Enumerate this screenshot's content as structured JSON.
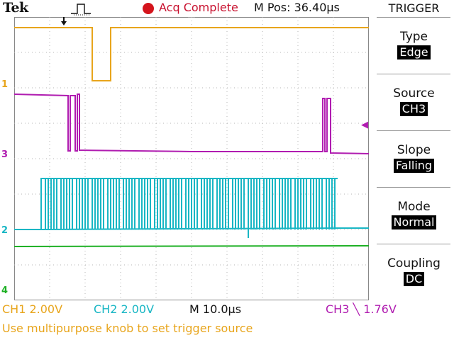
{
  "brand": "Tek",
  "acquisition": {
    "status": "Acq Complete",
    "status_color": "#c8102e"
  },
  "horizontal_position": "M Pos: 36.40µs",
  "trigger_menu": {
    "title": "TRIGGER",
    "items": [
      {
        "label": "Type",
        "value": "Edge"
      },
      {
        "label": "Source",
        "value": "CH3"
      },
      {
        "label": "Slope",
        "value": "Falling"
      },
      {
        "label": "Mode",
        "value": "Normal"
      },
      {
        "label": "Coupling",
        "value": "DC"
      }
    ]
  },
  "channel_markers": {
    "ch1": "1",
    "ch2": "2",
    "ch3": "3",
    "ch4": "4"
  },
  "readouts": {
    "ch1": "CH1  2.00V",
    "ch2": "CH2  2.00V",
    "timebase": "M 10.0µs",
    "ch3_trigger": "CH3 ╲ 1.76V"
  },
  "hint": "Use multipurpose knob to set trigger source",
  "colors": {
    "ch1": "#e8a51c",
    "ch2": "#18b6c4",
    "ch3": "#b01cb0",
    "ch4": "#1db024",
    "graticule": "#aaaaaa"
  },
  "icons": {
    "trigger_position": "down-arrow-icon",
    "trigger_type": "pulse-icon",
    "trigger_level": "left-arrow-icon"
  }
}
